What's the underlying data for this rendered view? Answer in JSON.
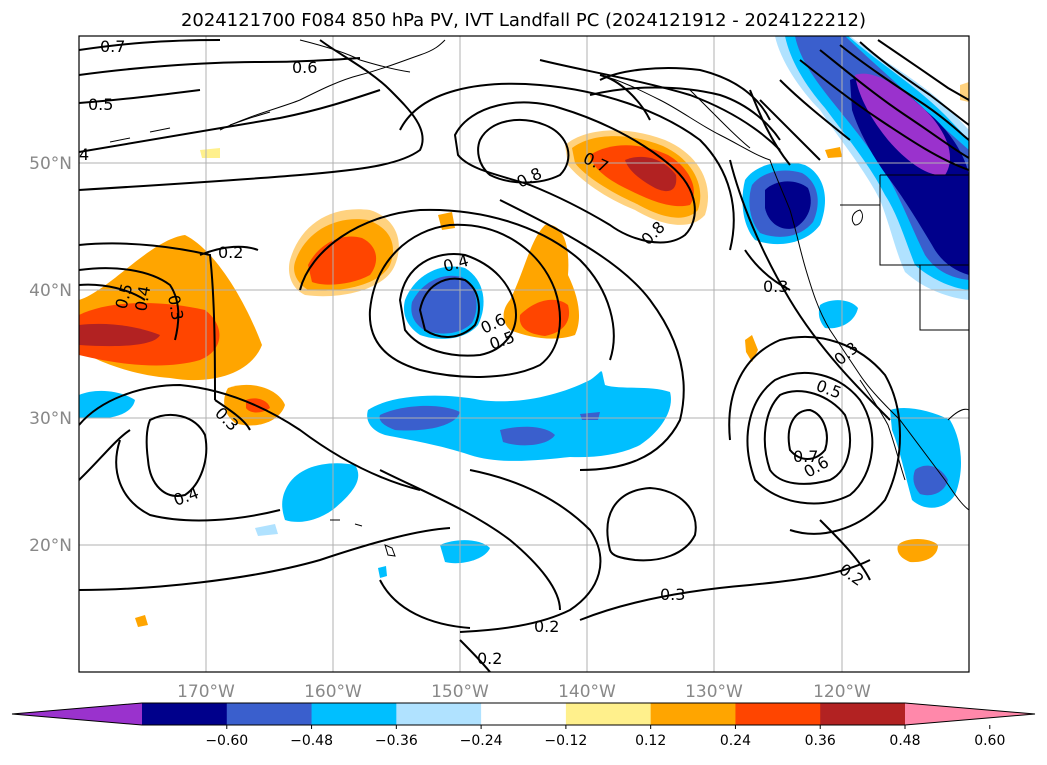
{
  "title": "2024121700 F084 850 hPa PV, IVT Landfall PC (2024121912 - 2024122212)",
  "lat_labels": [
    "50°N",
    "40°N",
    "30°N",
    "20°N"
  ],
  "lon_labels": [
    "170°W",
    "160°W",
    "150°W",
    "140°W",
    "130°W",
    "120°W"
  ],
  "colorbar": {
    "ticks": [
      "−0.60",
      "−0.48",
      "−0.36",
      "−0.24",
      "−0.12",
      "0.12",
      "0.24",
      "0.36",
      "0.48",
      "0.60"
    ],
    "colors": [
      "#9a32cd",
      "#00008b",
      "#3a5fcd",
      "#00bfff",
      "#b0e2ff",
      "#ffffff",
      "#fff08c",
      "#ffa500",
      "#ff4500",
      "#b22222",
      "#ff88aa"
    ]
  },
  "contour_labels": [
    "0.7",
    "0.6",
    "0.5",
    "4",
    "0.2",
    "0.5",
    "0.4",
    "0.3",
    "0.3",
    "0.4",
    "0.8",
    "0.7",
    "0.8",
    "0.4",
    "0.6",
    "0.5",
    "0.3",
    "0.5",
    "0.3",
    "0.7",
    "0.6",
    "0.2",
    "0.3",
    "0.2",
    "0.2"
  ]
}
